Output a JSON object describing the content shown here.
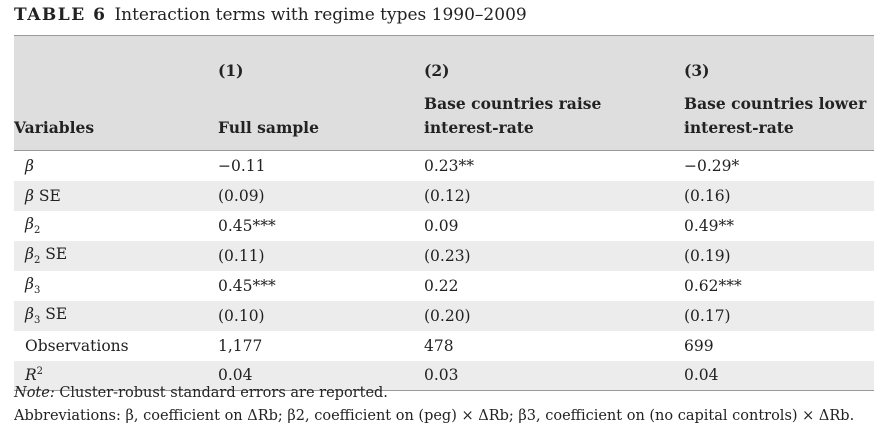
{
  "caption": {
    "label": "TABLE 6",
    "text": "Interaction terms with regime types 1990–2009"
  },
  "header": {
    "numbers": [
      "(1)",
      "(2)",
      "(3)"
    ],
    "variables": "Variables",
    "col1": "Full sample",
    "col2_line1": "Base countries raise",
    "col2_line2": "interest-rate",
    "col3_line1": "Base countries lower",
    "col3_line2": "interest-rate"
  },
  "rows": [
    {
      "var": "β",
      "sub": "",
      "sup": "",
      "suffix": "",
      "v1": "−0.11",
      "v2": "0.23**",
      "v3": "−0.29*"
    },
    {
      "var": "β",
      "sub": "",
      "sup": "",
      "suffix": " SE",
      "v1": "(0.09)",
      "v2": "(0.12)",
      "v3": "(0.16)"
    },
    {
      "var": "β",
      "sub": "2",
      "sup": "",
      "suffix": "",
      "v1": "0.45***",
      "v2": "0.09",
      "v3": "0.49**"
    },
    {
      "var": "β",
      "sub": "2",
      "sup": "",
      "suffix": " SE",
      "v1": "(0.11)",
      "v2": "(0.23)",
      "v3": "(0.19)"
    },
    {
      "var": "β",
      "sub": "3",
      "sup": "",
      "suffix": "",
      "v1": "0.45***",
      "v2": "0.22",
      "v3": "0.62***"
    },
    {
      "var": "β",
      "sub": "3",
      "sup": "",
      "suffix": " SE",
      "v1": "(0.10)",
      "v2": "(0.20)",
      "v3": "(0.17)"
    },
    {
      "var": "",
      "sub": "",
      "sup": "",
      "suffix": "Observations",
      "v1": "1,177",
      "v2": "478",
      "v3": "699"
    },
    {
      "var": "R",
      "sub": "",
      "sup": "2",
      "suffix": "",
      "v1": "0.04",
      "v2": "0.03",
      "v3": "0.04"
    }
  ],
  "notes": {
    "note_label": "Note:",
    "note_text": " Cluster-robust standard errors are reported.",
    "abbrev": "Abbreviations: β, coefficient on ΔRb; β2, coefficient on (peg) × ΔRb; β3, coefficient on (no capital controls) × ΔRb."
  }
}
